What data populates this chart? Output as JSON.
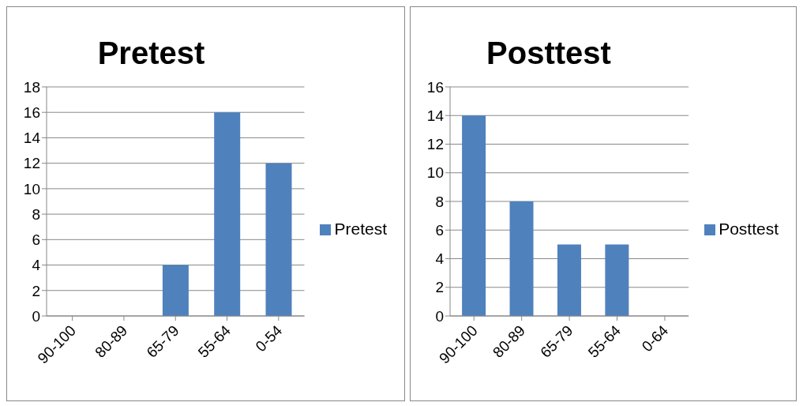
{
  "chart_data": [
    {
      "type": "bar",
      "title": "Pretest",
      "categories": [
        "90-100",
        "80-89",
        "65-79",
        "55-64",
        "0-54"
      ],
      "series": [
        {
          "name": "Pretest",
          "color": "#4f81bd",
          "values": [
            0,
            0,
            4,
            16,
            12
          ]
        }
      ],
      "ylim": [
        0,
        18
      ],
      "yticks": [
        0,
        2,
        4,
        6,
        8,
        10,
        12,
        14,
        16,
        18
      ],
      "grid": "y",
      "legend": "right"
    },
    {
      "type": "bar",
      "title": "Posttest",
      "categories": [
        "90-100",
        "80-89",
        "65-79",
        "55-64",
        "0-64"
      ],
      "series": [
        {
          "name": "Posttest",
          "color": "#4f81bd",
          "values": [
            14,
            8,
            5,
            5,
            0
          ]
        }
      ],
      "ylim": [
        0,
        16
      ],
      "yticks": [
        0,
        2,
        4,
        6,
        8,
        10,
        12,
        14,
        16
      ],
      "grid": "y",
      "legend": "right"
    }
  ]
}
